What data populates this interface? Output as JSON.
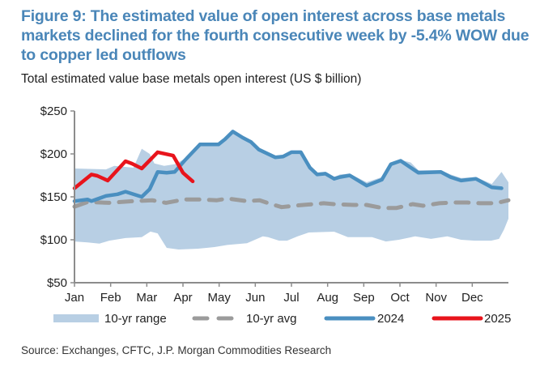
{
  "title": "Figure 9: The estimated value of open interest across base metals markets declined for the fourth consecutive week by -5.4% WOW due to copper led outflows",
  "subtitle": "Total estimated value base metals open interest (US $ billion)",
  "source": "Source: Exchanges, CFTC, J.P. Morgan Commodities Research",
  "colors": {
    "title": "#4a86b8",
    "range_fill": "#b8cfe4",
    "avg": "#9b9b9b",
    "y2024": "#4a8fc0",
    "y2025": "#e8141c",
    "axis": "#8c8c8c"
  },
  "chart_data": {
    "type": "line",
    "title": "Total estimated value base metals open interest (US $ billion)",
    "xlabel": "",
    "ylabel": "US $ billion",
    "x_unit": "months elapsed since Jan 1 (0-12)",
    "xlim": [
      0,
      12
    ],
    "ylim": [
      50,
      250
    ],
    "yticks": [
      50,
      100,
      150,
      200,
      250
    ],
    "ytick_labels": [
      "$50",
      "$100",
      "$150",
      "$200",
      "$250"
    ],
    "xticks": [
      0,
      1,
      2,
      3,
      4,
      5,
      6,
      7,
      8,
      9,
      10,
      11
    ],
    "xtick_labels": [
      "Jan",
      "Feb",
      "Mar",
      "Apr",
      "May",
      "Jun",
      "Jul",
      "Aug",
      "Sep",
      "Oct",
      "Nov",
      "Dec"
    ],
    "grid": false,
    "legend_position": "bottom",
    "legend": [
      "10-yr range",
      "10-yr avg",
      "2024",
      "2025"
    ],
    "series": [
      {
        "name": "10-yr range",
        "kind": "band",
        "upper": [
          [
            0,
            183
          ],
          [
            0.87,
            182
          ],
          [
            1.1,
            186
          ],
          [
            1.63,
            184
          ],
          [
            1.86,
            206
          ],
          [
            2.08,
            200
          ],
          [
            2.21,
            189
          ],
          [
            2.48,
            186
          ],
          [
            2.77,
            188
          ],
          [
            3.04,
            194
          ],
          [
            3.47,
            212
          ],
          [
            3.98,
            212
          ],
          [
            4.16,
            218
          ],
          [
            4.38,
            227
          ],
          [
            4.65,
            220
          ],
          [
            4.88,
            215
          ],
          [
            5.1,
            206
          ],
          [
            5.55,
            197
          ],
          [
            5.77,
            198
          ],
          [
            6.0,
            203
          ],
          [
            6.26,
            203
          ],
          [
            6.51,
            186
          ],
          [
            6.71,
            178
          ],
          [
            6.94,
            179
          ],
          [
            7.18,
            173
          ],
          [
            7.34,
            176
          ],
          [
            7.61,
            177
          ],
          [
            8.08,
            167
          ],
          [
            8.5,
            173
          ],
          [
            8.75,
            190
          ],
          [
            9.02,
            193
          ],
          [
            9.3,
            190
          ],
          [
            9.51,
            181
          ],
          [
            10.13,
            181
          ],
          [
            10.4,
            176
          ],
          [
            10.69,
            172
          ],
          [
            11.1,
            173
          ],
          [
            11.54,
            165
          ],
          [
            11.81,
            179
          ],
          [
            12.0,
            167
          ]
        ],
        "lower": [
          [
            0,
            98
          ],
          [
            0.36,
            97
          ],
          [
            0.69,
            95.6
          ],
          [
            0.96,
            99
          ],
          [
            1.41,
            102
          ],
          [
            1.86,
            103
          ],
          [
            2.1,
            109.5
          ],
          [
            2.3,
            107.5
          ],
          [
            2.55,
            90.6
          ],
          [
            2.88,
            88.7
          ],
          [
            3.42,
            89.6
          ],
          [
            3.87,
            91.5
          ],
          [
            4.23,
            94
          ],
          [
            4.77,
            96
          ],
          [
            5.21,
            104
          ],
          [
            5.35,
            103
          ],
          [
            5.66,
            99
          ],
          [
            5.88,
            99
          ],
          [
            6.17,
            104
          ],
          [
            6.48,
            108.5
          ],
          [
            7.18,
            109.4
          ],
          [
            7.56,
            103
          ],
          [
            7.94,
            103
          ],
          [
            8.23,
            103
          ],
          [
            8.61,
            98
          ],
          [
            8.97,
            100
          ],
          [
            9.42,
            104
          ],
          [
            9.86,
            101
          ],
          [
            10.31,
            104
          ],
          [
            10.69,
            100
          ],
          [
            11.07,
            99
          ],
          [
            11.52,
            99
          ],
          [
            11.74,
            101
          ],
          [
            11.88,
            112
          ],
          [
            12.0,
            124.5
          ]
        ]
      },
      {
        "name": "10-yr avg",
        "kind": "dashed-line",
        "points": [
          [
            0,
            138.6
          ],
          [
            0.36,
            144
          ],
          [
            0.96,
            143
          ],
          [
            1.63,
            145
          ],
          [
            2.15,
            146
          ],
          [
            2.53,
            143
          ],
          [
            3.04,
            147
          ],
          [
            3.42,
            147
          ],
          [
            3.94,
            146
          ],
          [
            4.23,
            148
          ],
          [
            4.77,
            145
          ],
          [
            5.12,
            146
          ],
          [
            5.44,
            141.5
          ],
          [
            5.73,
            138
          ],
          [
            6.17,
            140
          ],
          [
            6.89,
            142.5
          ],
          [
            7.18,
            141.5
          ],
          [
            7.72,
            140.6
          ],
          [
            8.08,
            140.6
          ],
          [
            8.52,
            137
          ],
          [
            8.9,
            137
          ],
          [
            9.35,
            141.5
          ],
          [
            9.64,
            139.6
          ],
          [
            10.09,
            142.5
          ],
          [
            10.47,
            143.4
          ],
          [
            10.87,
            143.4
          ],
          [
            11.21,
            142.5
          ],
          [
            11.65,
            142.5
          ],
          [
            12.0,
            146
          ]
        ]
      },
      {
        "name": "2024",
        "kind": "line",
        "points": [
          [
            0,
            145
          ],
          [
            0.36,
            147
          ],
          [
            0.47,
            145
          ],
          [
            0.87,
            151
          ],
          [
            1.19,
            153
          ],
          [
            1.41,
            156
          ],
          [
            1.86,
            150
          ],
          [
            2.08,
            159
          ],
          [
            2.3,
            179
          ],
          [
            2.55,
            178
          ],
          [
            2.77,
            179
          ],
          [
            3.04,
            192
          ],
          [
            3.47,
            211
          ],
          [
            3.98,
            211
          ],
          [
            4.16,
            217
          ],
          [
            4.38,
            226
          ],
          [
            4.65,
            219
          ],
          [
            4.88,
            214
          ],
          [
            5.1,
            205
          ],
          [
            5.55,
            196
          ],
          [
            5.77,
            197
          ],
          [
            6.0,
            202
          ],
          [
            6.26,
            202
          ],
          [
            6.51,
            184
          ],
          [
            6.71,
            176
          ],
          [
            6.94,
            177
          ],
          [
            7.18,
            171
          ],
          [
            7.34,
            173
          ],
          [
            7.61,
            175
          ],
          [
            8.08,
            163
          ],
          [
            8.5,
            170
          ],
          [
            8.75,
            188
          ],
          [
            9.02,
            192
          ],
          [
            9.51,
            178
          ],
          [
            10.13,
            179
          ],
          [
            10.4,
            173
          ],
          [
            10.69,
            169
          ],
          [
            11.1,
            171
          ],
          [
            11.54,
            161
          ],
          [
            11.81,
            160
          ]
        ]
      },
      {
        "name": "2025",
        "kind": "line",
        "points": [
          [
            0,
            160
          ],
          [
            0.47,
            176
          ],
          [
            0.63,
            174.5
          ],
          [
            0.92,
            169
          ],
          [
            1.41,
            191.5
          ],
          [
            1.59,
            188.7
          ],
          [
            1.86,
            183
          ],
          [
            2.3,
            202
          ],
          [
            2.73,
            198
          ],
          [
            3.0,
            178
          ],
          [
            3.27,
            168
          ]
        ]
      }
    ]
  }
}
